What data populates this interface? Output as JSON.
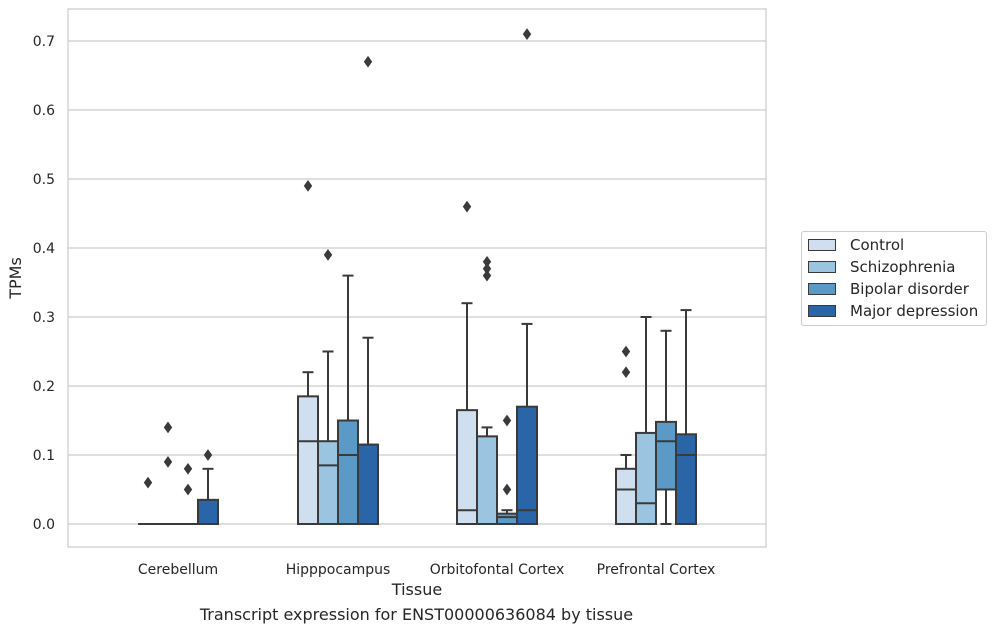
{
  "chart_data": {
    "type": "box",
    "title": "",
    "xlabel": "Tissue",
    "ylabel": "TPMs",
    "caption": "Transcript expression for ENST00000636084 by tissue",
    "ylim": [
      -0.035,
      0.745
    ],
    "yticks": [
      "0.0",
      "0.1",
      "0.2",
      "0.3",
      "0.4",
      "0.5",
      "0.6",
      "0.7"
    ],
    "grid": true,
    "legend_position": "right",
    "categories": [
      "Cerebellum",
      "Hipppocampus",
      "Orbitofontal Cortex",
      "Prefrontal Cortex"
    ],
    "series": [
      {
        "name": "Control",
        "color": "#cfdfef",
        "boxes": [
          {
            "q1": 0,
            "median": 0,
            "q3": 0,
            "whisker_low": 0,
            "whisker_high": 0,
            "outliers": [
              0.06
            ]
          },
          {
            "q1": 0,
            "median": 0.12,
            "q3": 0.185,
            "whisker_low": 0,
            "whisker_high": 0.22,
            "outliers": [
              0.49
            ]
          },
          {
            "q1": 0,
            "median": 0.02,
            "q3": 0.165,
            "whisker_low": 0,
            "whisker_high": 0.32,
            "outliers": [
              0.46
            ]
          },
          {
            "q1": 0,
            "median": 0.05,
            "q3": 0.08,
            "whisker_low": 0,
            "whisker_high": 0.1,
            "outliers": [
              0.22,
              0.25
            ]
          }
        ]
      },
      {
        "name": "Schizophrenia",
        "color": "#9ac4df",
        "boxes": [
          {
            "q1": 0,
            "median": 0,
            "q3": 0,
            "whisker_low": 0,
            "whisker_high": 0,
            "outliers": [
              0.09,
              0.14
            ]
          },
          {
            "q1": 0,
            "median": 0.085,
            "q3": 0.12,
            "whisker_low": 0,
            "whisker_high": 0.25,
            "outliers": [
              0.39
            ]
          },
          {
            "q1": 0,
            "median": 0,
            "q3": 0.127,
            "whisker_low": 0,
            "whisker_high": 0.14,
            "outliers": [
              0.36,
              0.37,
              0.38
            ]
          },
          {
            "q1": 0,
            "median": 0.03,
            "q3": 0.132,
            "whisker_low": 0,
            "whisker_high": 0.3,
            "outliers": []
          }
        ]
      },
      {
        "name": "Bipolar disorder",
        "color": "#5b9ac6",
        "boxes": [
          {
            "q1": 0,
            "median": 0,
            "q3": 0,
            "whisker_low": 0,
            "whisker_high": 0,
            "outliers": [
              0.05,
              0.08
            ]
          },
          {
            "q1": 0,
            "median": 0.1,
            "q3": 0.15,
            "whisker_low": 0,
            "whisker_high": 0.36,
            "outliers": []
          },
          {
            "q1": 0,
            "median": 0.01,
            "q3": 0.015,
            "whisker_low": 0,
            "whisker_high": 0.02,
            "outliers": [
              0.05,
              0.15
            ]
          },
          {
            "q1": 0.05,
            "median": 0.12,
            "q3": 0.148,
            "whisker_low": 0,
            "whisker_high": 0.28,
            "outliers": []
          }
        ]
      },
      {
        "name": "Major depression",
        "color": "#2a66a7",
        "boxes": [
          {
            "q1": 0,
            "median": 0,
            "q3": 0.035,
            "whisker_low": 0,
            "whisker_high": 0.08,
            "outliers": [
              0.1
            ]
          },
          {
            "q1": 0,
            "median": 0.115,
            "q3": 0.115,
            "whisker_low": 0,
            "whisker_high": 0.27,
            "outliers": [
              0.67
            ]
          },
          {
            "q1": 0,
            "median": 0.02,
            "q3": 0.17,
            "whisker_low": 0,
            "whisker_high": 0.29,
            "outliers": [
              0.71
            ]
          },
          {
            "q1": 0,
            "median": 0.1,
            "q3": 0.13,
            "whisker_low": 0,
            "whisker_high": 0.31,
            "outliers": []
          }
        ]
      }
    ]
  }
}
